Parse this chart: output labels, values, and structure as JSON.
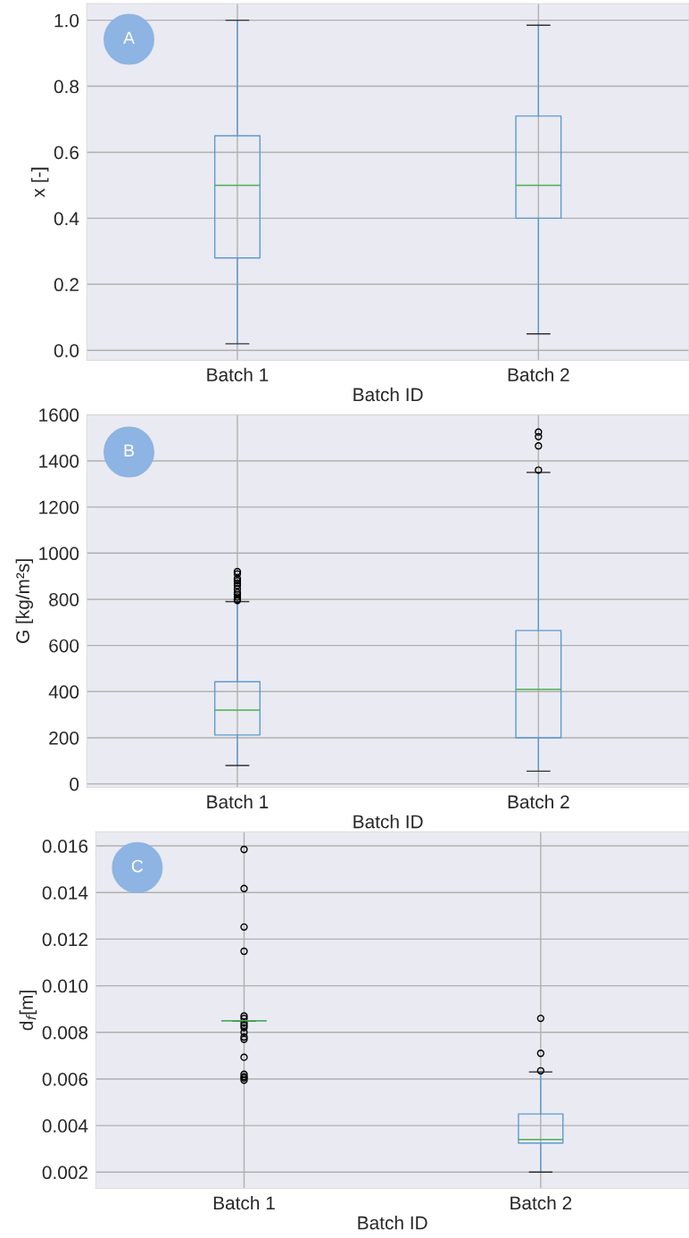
{
  "chart_data": [
    {
      "type": "box",
      "categories": [
        "Batch 1",
        "Batch 2"
      ],
      "xlabel": "Batch ID",
      "ylabel": "x [-]",
      "annotations": [
        "A"
      ],
      "ylim": [
        -0.03,
        1.05
      ],
      "yticks": [
        {
          "value": 0,
          "label": "0.0"
        },
        0.2,
        0.4,
        0.6,
        0.8,
        {
          "value": 1,
          "label": "1.0"
        }
      ],
      "grid": true,
      "series": [
        {
          "color": "#5b9bd0",
          "boxes": [
            {
              "low": 0.02,
              "q1": 0.28,
              "median": 0.5,
              "q3": 0.65,
              "high": 1.0
            },
            {
              "low": 0.05,
              "q1": 0.4,
              "median": 0.5,
              "q3": 0.71,
              "high": 0.985
            }
          ]
        }
      ]
    },
    {
      "type": "box",
      "categories": [
        "Batch 1",
        "Batch 2"
      ],
      "xlabel": "Batch ID",
      "ylabel": "G [kg/m²s]",
      "annotations": [
        "B"
      ],
      "ylim": [
        -15,
        1600
      ],
      "yticks": [
        0,
        200,
        400,
        600,
        800,
        1000,
        1200,
        1400,
        1600
      ],
      "grid": true,
      "series": [
        {
          "color": "#5b9bd0",
          "boxes": [
            {
              "low": 80,
              "q1": 212,
              "median": 320,
              "q3": 443,
              "high": 790,
              "outliers": [
                795,
                800,
                810,
                820,
                830,
                845,
                860,
                870,
                880,
                890,
                910,
                920
              ]
            },
            {
              "low": 55,
              "q1": 200,
              "median": 410,
              "q3": 665,
              "high": 1350,
              "outliers": [
                1360,
                1465,
                1505,
                1525
              ]
            }
          ]
        }
      ]
    },
    {
      "type": "box",
      "categories": [
        "Batch 1",
        "Batch 2"
      ],
      "xlabel": "Batch ID",
      "ylabel": "d$_{f}$[m]",
      "annotations": [
        "C"
      ],
      "ylim": [
        0.0013,
        0.0166
      ],
      "yticks": [
        0.002,
        0.004,
        0.006,
        0.008,
        {
          "value": 0.01,
          "label": "0.010"
        },
        0.012,
        0.014,
        0.016
      ],
      "grid": true,
      "series": [
        {
          "color": "#5b9bd0",
          "boxes": [
            {
              "low": 0.0085,
              "q1": 0.0085,
              "median": 0.0085,
              "q3": 0.0085,
              "high": 0.0085,
              "outliers": [
                0.01585,
                0.01417,
                0.01252,
                0.01148,
                0.0087,
                0.0086,
                0.0084,
                0.0083,
                0.0082,
                0.008,
                0.0078,
                0.0077,
                0.00693,
                0.0062,
                0.0061,
                0.00604,
                0.00595
              ]
            },
            {
              "low": 0.002,
              "q1": 0.00325,
              "median": 0.0034,
              "q3": 0.0045,
              "high": 0.0063,
              "outliers": [
                0.00635,
                0.0071,
                0.0086
              ]
            }
          ]
        }
      ]
    }
  ]
}
